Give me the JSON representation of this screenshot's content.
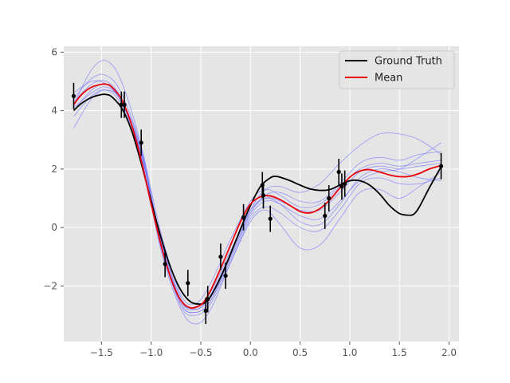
{
  "chart_data": {
    "type": "line",
    "title": "",
    "xlabel": "",
    "ylabel": "",
    "xlim": [
      -1.88,
      2.1
    ],
    "ylim": [
      -3.9,
      6.2
    ],
    "x_ticks": [
      -1.5,
      -1.0,
      -0.5,
      0.0,
      0.5,
      1.0,
      1.5,
      2.0
    ],
    "x_tick_labels": [
      "−1.5",
      "−1.0",
      "−0.5",
      "0.0",
      "0.5",
      "1.0",
      "1.5",
      "2.0"
    ],
    "y_ticks": [
      -2,
      0,
      2,
      4,
      6
    ],
    "y_tick_labels": [
      "−2",
      "0",
      "2",
      "4",
      "6"
    ],
    "grid": true,
    "legend_position": "top-right",
    "colors": {
      "background": "#e5e5e5",
      "grid": "#ffffff",
      "ground_truth": "#000000",
      "mean": "#e8000b",
      "samples": "#6a6aff",
      "observations": "#000000"
    },
    "series": [
      {
        "name": "Ground Truth",
        "role": "ground_truth",
        "x": [
          -1.78,
          -1.7,
          -1.6,
          -1.5,
          -1.45,
          -1.4,
          -1.3,
          -1.2,
          -1.1,
          -1.0,
          -0.9,
          -0.8,
          -0.7,
          -0.6,
          -0.5,
          -0.45,
          -0.4,
          -0.3,
          -0.2,
          -0.1,
          0.0,
          0.1,
          0.2,
          0.25,
          0.3,
          0.4,
          0.5,
          0.6,
          0.7,
          0.8,
          0.9,
          1.0,
          1.1,
          1.2,
          1.3,
          1.4,
          1.5,
          1.6,
          1.65,
          1.7,
          1.8,
          1.92
        ],
        "y": [
          4.0,
          4.25,
          4.45,
          4.55,
          4.55,
          4.48,
          4.1,
          3.35,
          2.2,
          0.9,
          -0.35,
          -1.4,
          -2.15,
          -2.55,
          -2.62,
          -2.55,
          -2.35,
          -1.7,
          -0.9,
          -0.05,
          0.75,
          1.4,
          1.7,
          1.75,
          1.72,
          1.6,
          1.45,
          1.32,
          1.27,
          1.3,
          1.45,
          1.6,
          1.6,
          1.45,
          1.15,
          0.75,
          0.48,
          0.42,
          0.47,
          0.7,
          1.35,
          2.08
        ]
      },
      {
        "name": "Mean",
        "role": "mean",
        "x": [
          -1.78,
          -1.7,
          -1.6,
          -1.5,
          -1.45,
          -1.4,
          -1.3,
          -1.2,
          -1.1,
          -1.0,
          -0.9,
          -0.8,
          -0.7,
          -0.6,
          -0.5,
          -0.45,
          -0.4,
          -0.3,
          -0.2,
          -0.1,
          0.0,
          0.1,
          0.2,
          0.3,
          0.4,
          0.5,
          0.6,
          0.7,
          0.8,
          0.9,
          1.0,
          1.1,
          1.2,
          1.3,
          1.4,
          1.5,
          1.6,
          1.7,
          1.8,
          1.92
        ],
        "y": [
          4.2,
          4.55,
          4.8,
          4.9,
          4.9,
          4.82,
          4.4,
          3.55,
          2.3,
          0.8,
          -0.6,
          -1.75,
          -2.5,
          -2.75,
          -2.65,
          -2.45,
          -2.15,
          -1.4,
          -0.6,
          0.2,
          0.8,
          1.05,
          1.08,
          0.95,
          0.75,
          0.55,
          0.5,
          0.65,
          0.95,
          1.35,
          1.72,
          1.93,
          1.98,
          1.9,
          1.8,
          1.74,
          1.75,
          1.85,
          2.0,
          2.12
        ]
      }
    ],
    "sample_paths": [
      {
        "x": [
          -1.78,
          -1.6,
          -1.45,
          -1.3,
          -1.1,
          -0.9,
          -0.7,
          -0.55,
          -0.4,
          -0.2,
          0.0,
          0.15,
          0.3,
          0.5,
          0.7,
          0.9,
          1.1,
          1.3,
          1.5,
          1.7,
          1.92
        ],
        "y": [
          4.2,
          5.4,
          5.7,
          5.0,
          2.8,
          -0.2,
          -2.3,
          -2.6,
          -1.9,
          -0.4,
          0.9,
          1.3,
          1.1,
          0.7,
          0.8,
          1.4,
          2.0,
          2.2,
          2.1,
          2.2,
          2.3
        ]
      },
      {
        "x": [
          -1.78,
          -1.6,
          -1.45,
          -1.3,
          -1.1,
          -0.9,
          -0.7,
          -0.55,
          -0.4,
          -0.2,
          0.0,
          0.15,
          0.3,
          0.5,
          0.7,
          0.9,
          1.1,
          1.3,
          1.5,
          1.7,
          1.92
        ],
        "y": [
          3.4,
          4.4,
          4.7,
          4.3,
          2.4,
          -0.8,
          -2.8,
          -3.3,
          -2.8,
          -1.2,
          0.2,
          0.6,
          0.1,
          -0.7,
          -0.6,
          0.3,
          1.2,
          1.3,
          1.0,
          1.4,
          1.9
        ]
      },
      {
        "x": [
          -1.78,
          -1.6,
          -1.45,
          -1.3,
          -1.1,
          -0.9,
          -0.7,
          -0.55,
          -0.4,
          -0.2,
          0.0,
          0.15,
          0.3,
          0.5,
          0.7,
          0.9,
          1.1,
          1.3,
          1.5,
          1.7,
          1.92
        ],
        "y": [
          4.6,
          5.0,
          4.9,
          4.3,
          2.6,
          -0.4,
          -2.4,
          -2.8,
          -2.3,
          -0.9,
          0.6,
          1.3,
          1.4,
          1.2,
          1.5,
          2.2,
          2.8,
          3.2,
          3.2,
          3.0,
          2.5
        ]
      },
      {
        "x": [
          -1.78,
          -1.6,
          -1.45,
          -1.3,
          -1.1,
          -0.9,
          -0.7,
          -0.55,
          -0.4,
          -0.2,
          0.0,
          0.15,
          0.3,
          0.5,
          0.7,
          0.9,
          1.1,
          1.3,
          1.5,
          1.7,
          1.92
        ],
        "y": [
          4.0,
          4.7,
          4.9,
          4.4,
          2.7,
          -0.5,
          -2.6,
          -2.9,
          -2.5,
          -1.1,
          0.4,
          0.9,
          0.8,
          0.4,
          0.3,
          0.9,
          1.6,
          1.9,
          2.0,
          2.4,
          2.9
        ]
      },
      {
        "x": [
          -1.78,
          -1.6,
          -1.45,
          -1.3,
          -1.1,
          -0.9,
          -0.7,
          -0.55,
          -0.4,
          -0.2,
          0.0,
          0.15,
          0.3,
          0.5,
          0.7,
          0.9,
          1.1,
          1.3,
          1.5,
          1.7,
          1.92
        ],
        "y": [
          3.8,
          4.5,
          4.7,
          4.2,
          2.5,
          -0.6,
          -2.7,
          -3.0,
          -2.6,
          -1.2,
          0.3,
          0.7,
          0.5,
          0.0,
          -0.1,
          0.6,
          1.5,
          1.7,
          1.5,
          1.5,
          1.7
        ]
      },
      {
        "x": [
          -1.78,
          -1.6,
          -1.45,
          -1.3,
          -1.1,
          -0.9,
          -0.7,
          -0.55,
          -0.4,
          -0.2,
          0.0,
          0.15,
          0.3,
          0.5,
          0.7,
          0.9,
          1.1,
          1.3,
          1.5,
          1.7,
          1.92
        ],
        "y": [
          4.3,
          4.9,
          5.0,
          4.4,
          2.5,
          -0.4,
          -2.5,
          -2.8,
          -2.4,
          -1.0,
          0.5,
          1.1,
          1.2,
          0.9,
          0.9,
          1.5,
          2.2,
          2.4,
          2.3,
          2.5,
          2.6
        ]
      },
      {
        "x": [
          -1.78,
          -1.6,
          -1.45,
          -1.3,
          -1.1,
          -0.9,
          -0.7,
          -0.55,
          -0.4,
          -0.2,
          0.0,
          0.15,
          0.3,
          0.5,
          0.7,
          0.9,
          1.1,
          1.3,
          1.5,
          1.7,
          1.92
        ],
        "y": [
          4.1,
          4.6,
          4.8,
          4.3,
          2.6,
          -0.7,
          -2.6,
          -2.9,
          -2.5,
          -1.0,
          0.5,
          1.0,
          0.9,
          0.6,
          0.6,
          1.2,
          1.9,
          2.1,
          2.0,
          2.1,
          2.2
        ]
      },
      {
        "x": [
          -1.78,
          -1.6,
          -1.45,
          -1.3,
          -1.1,
          -0.9,
          -0.7,
          -0.55,
          -0.4,
          -0.2,
          0.0,
          0.15,
          0.3,
          0.5,
          0.7,
          0.9,
          1.1,
          1.3,
          1.5,
          1.7,
          1.92
        ],
        "y": [
          4.4,
          5.1,
          5.2,
          4.6,
          2.7,
          -0.5,
          -2.5,
          -2.7,
          -2.2,
          -0.8,
          0.6,
          1.0,
          0.8,
          0.2,
          0.1,
          0.8,
          1.7,
          2.0,
          1.9,
          1.7,
          1.6
        ]
      }
    ],
    "observations": {
      "x": [
        -1.78,
        -1.3,
        -1.27,
        -1.1,
        -0.86,
        -0.63,
        -0.45,
        -0.43,
        -0.3,
        -0.25,
        -0.07,
        0.12,
        0.13,
        0.2,
        0.75,
        0.79,
        0.89,
        0.92,
        0.95,
        1.92
      ],
      "y": [
        4.5,
        4.2,
        4.2,
        2.9,
        -1.25,
        -1.9,
        -2.85,
        -2.45,
        -1.0,
        -1.65,
        0.35,
        1.45,
        1.1,
        0.3,
        0.4,
        1.0,
        1.9,
        1.4,
        1.5,
        2.1
      ],
      "err": [
        0.45,
        0.45,
        0.45,
        0.45,
        0.45,
        0.45,
        0.45,
        0.45,
        0.45,
        0.45,
        0.45,
        0.45,
        0.45,
        0.45,
        0.45,
        0.45,
        0.45,
        0.45,
        0.45,
        0.45
      ]
    }
  }
}
